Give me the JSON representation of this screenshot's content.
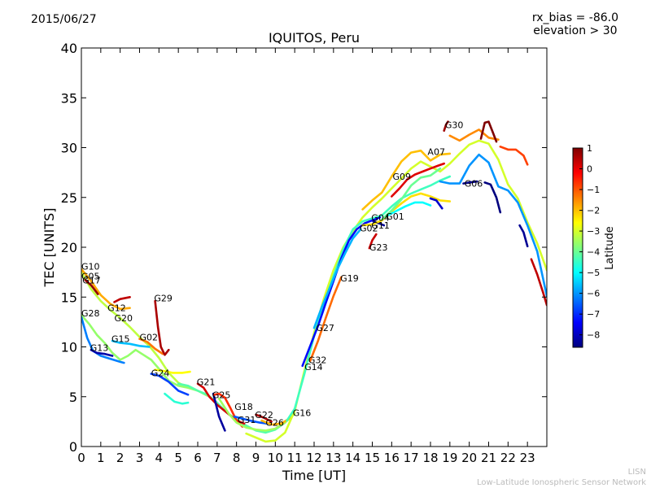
{
  "header": {
    "date": "2015/06/27",
    "bias_line1": "rx_bias = -86.0",
    "bias_line2": "elevation > 30"
  },
  "footer": {
    "org_short": "LISN",
    "org_long": "Low-Latitude Ionospheric Sensor Network"
  },
  "chart_data": {
    "type": "line",
    "title": "IQUITOS, Peru",
    "xlabel": "Time [UT]",
    "ylabel": "TEC [UNITS]",
    "xlim": [
      0,
      24
    ],
    "ylim": [
      0,
      40
    ],
    "xticks": [
      0,
      1,
      2,
      3,
      4,
      5,
      6,
      7,
      8,
      9,
      10,
      11,
      12,
      13,
      14,
      15,
      16,
      17,
      18,
      19,
      20,
      21,
      22,
      23
    ],
    "yticks": [
      0,
      5,
      10,
      15,
      20,
      25,
      30,
      35,
      40
    ],
    "grid": false,
    "colorbar": {
      "label": "Latitude",
      "range": [
        -8.6,
        1
      ],
      "ticks": [
        1,
        0,
        -1,
        -2,
        -3,
        -4,
        -5,
        -6,
        -7,
        -8
      ],
      "tick_labels": [
        "1",
        "0",
        "−1",
        "−2",
        "−3",
        "−4",
        "−5",
        "−6",
        "−7",
        "−8"
      ],
      "colormap": [
        "#00007f",
        "#0000ff",
        "#007fff",
        "#00ffff",
        "#7fff7f",
        "#ffff00",
        "#ff7f00",
        "#ff0000",
        "#7f0000"
      ]
    },
    "prn_labels": [
      {
        "text": "G10",
        "x": 0.0,
        "y": 18.1
      },
      {
        "text": "G05",
        "x": 0.0,
        "y": 17.1
      },
      {
        "text": "G17",
        "x": 0.05,
        "y": 16.7
      },
      {
        "text": "G28",
        "x": 0.0,
        "y": 13.4
      },
      {
        "text": "G12",
        "x": 1.35,
        "y": 13.9
      },
      {
        "text": "G20",
        "x": 1.7,
        "y": 12.9
      },
      {
        "text": "G29",
        "x": 3.75,
        "y": 14.9
      },
      {
        "text": "G15",
        "x": 1.55,
        "y": 10.8
      },
      {
        "text": "G02",
        "x": 3.0,
        "y": 11.0
      },
      {
        "text": "G13",
        "x": 0.45,
        "y": 9.9
      },
      {
        "text": "G24",
        "x": 3.6,
        "y": 7.4
      },
      {
        "text": "G21",
        "x": 5.95,
        "y": 6.5
      },
      {
        "text": "G25",
        "x": 6.75,
        "y": 5.2
      },
      {
        "text": "G18",
        "x": 7.9,
        "y": 4.0
      },
      {
        "text": "G31",
        "x": 8.05,
        "y": 2.7
      },
      {
        "text": "G22",
        "x": 8.95,
        "y": 3.2
      },
      {
        "text": "G26",
        "x": 9.5,
        "y": 2.4
      },
      {
        "text": "G16",
        "x": 10.9,
        "y": 3.4
      },
      {
        "text": "G14",
        "x": 11.5,
        "y": 8.0
      },
      {
        "text": "G32",
        "x": 11.7,
        "y": 8.7
      },
      {
        "text": "G27",
        "x": 12.1,
        "y": 11.9
      },
      {
        "text": "G19",
        "x": 13.35,
        "y": 16.9
      },
      {
        "text": "G23",
        "x": 14.85,
        "y": 20.0
      },
      {
        "text": "G02",
        "x": 14.35,
        "y": 21.9
      },
      {
        "text": "G11",
        "x": 14.95,
        "y": 22.2
      },
      {
        "text": "G04",
        "x": 14.95,
        "y": 23.0
      },
      {
        "text": "G01",
        "x": 15.7,
        "y": 23.1
      },
      {
        "text": "G09",
        "x": 16.05,
        "y": 27.1
      },
      {
        "text": "A07",
        "x": 17.85,
        "y": 29.6
      },
      {
        "text": "G30",
        "x": 18.75,
        "y": 32.3
      },
      {
        "text": "G06",
        "x": 19.75,
        "y": 26.4
      }
    ],
    "series": [
      {
        "lat": -3.2,
        "x": [
          0,
          0.5,
          1,
          1.5,
          2,
          2.5,
          3,
          3.5,
          4,
          4.5,
          5,
          5.5
        ],
        "y": [
          17.5,
          15.8,
          14.6,
          13.7,
          12.9,
          12.0,
          11.0,
          10.1,
          8.9,
          7.4,
          6.4,
          5.9
        ]
      },
      {
        "lat": -1.8,
        "x": [
          0,
          0.5,
          1,
          1.5,
          2,
          2.5
        ],
        "y": [
          17.8,
          16.6,
          15.2,
          14.3,
          13.8,
          13.9
        ]
      },
      {
        "lat": 0.8,
        "x": [
          0.2,
          0.5,
          0.85
        ],
        "y": [
          16.7,
          16.2,
          15.3
        ]
      },
      {
        "lat": 0.4,
        "x": [
          1.7,
          2.0,
          2.5
        ],
        "y": [
          14.5,
          14.8,
          15.0
        ]
      },
      {
        "lat": -3.6,
        "x": [
          0,
          0.4,
          0.8,
          1.2,
          1.6,
          2,
          2.4,
          2.8,
          3.2,
          3.6,
          4,
          4.5,
          5,
          5.5,
          6,
          6.5
        ],
        "y": [
          13.2,
          12.3,
          11.2,
          10.4,
          9.4,
          8.7,
          9.1,
          9.7,
          9.2,
          8.7,
          7.8,
          6.6,
          6.1,
          5.9,
          5.6,
          5.1
        ]
      },
      {
        "lat": -6.2,
        "x": [
          0,
          0.3,
          0.6,
          1.0,
          1.5,
          2.0,
          2.2
        ],
        "y": [
          13.0,
          10.9,
          9.6,
          9.1,
          8.8,
          8.5,
          8.4
        ]
      },
      {
        "lat": -8.2,
        "x": [
          0.5,
          0.8,
          1.2,
          1.6
        ],
        "y": [
          9.7,
          9.4,
          9.3,
          9.1
        ]
      },
      {
        "lat": -5.6,
        "x": [
          1.6,
          2.0,
          2.5,
          3.0,
          3.5
        ],
        "y": [
          10.6,
          10.4,
          10.3,
          10.1,
          10.0
        ]
      },
      {
        "lat": -1.3,
        "x": [
          3.0,
          3.4,
          3.8,
          4.2
        ],
        "y": [
          10.8,
          10.5,
          9.8,
          9.3
        ]
      },
      {
        "lat": 0.6,
        "x": [
          3.8,
          3.95,
          4.1,
          4.3,
          4.5
        ],
        "y": [
          14.6,
          12.0,
          10.0,
          9.2,
          9.7
        ]
      },
      {
        "lat": -6.8,
        "x": [
          3.6,
          4.0,
          4.5,
          5.0,
          5.5
        ],
        "y": [
          7.3,
          7.1,
          6.5,
          5.6,
          5.2
        ]
      },
      {
        "lat": -2.6,
        "x": [
          3.8,
          4.2,
          4.7,
          5.2,
          5.6
        ],
        "y": [
          7.7,
          7.6,
          7.4,
          7.4,
          7.5
        ]
      },
      {
        "lat": -4.6,
        "x": [
          4.3,
          4.8,
          5.2,
          5.5
        ],
        "y": [
          5.3,
          4.5,
          4.3,
          4.4
        ]
      },
      {
        "lat": -4.2,
        "x": [
          5.0,
          5.5,
          6.0,
          6.5,
          7.0,
          7.5,
          8.0,
          8.5,
          9.0,
          9.5,
          10.0,
          10.5
        ],
        "y": [
          6.3,
          6.1,
          5.6,
          5.2,
          4.4,
          3.4,
          2.7,
          2.1,
          1.6,
          1.4,
          1.7,
          2.4
        ]
      },
      {
        "lat": 0.2,
        "x": [
          6.0,
          6.3,
          6.6,
          7.0,
          7.5,
          8.0,
          8.4
        ],
        "y": [
          6.3,
          5.9,
          5.0,
          4.2,
          3.4,
          2.6,
          2.3
        ]
      },
      {
        "lat": -8.3,
        "x": [
          6.8,
          7.1,
          7.4
        ],
        "y": [
          5.3,
          3.0,
          1.6
        ]
      },
      {
        "lat": -0.6,
        "x": [
          6.85,
          7.1,
          7.4,
          7.7,
          8.0,
          8.3
        ],
        "y": [
          5.2,
          5.3,
          4.9,
          3.8,
          2.6,
          2.0
        ]
      },
      {
        "lat": -3.5,
        "x": [
          7.1,
          7.6,
          8.0,
          8.5,
          9.0,
          9.5,
          10.0,
          10.5,
          11.0
        ],
        "y": [
          4.8,
          3.3,
          2.4,
          1.9,
          1.7,
          1.6,
          1.8,
          2.4,
          3.3
        ]
      },
      {
        "lat": -6.6,
        "x": [
          7.9,
          8.3,
          8.7,
          9.2,
          9.6
        ],
        "y": [
          3.0,
          2.8,
          2.6,
          2.4,
          2.3
        ]
      },
      {
        "lat": 0.6,
        "x": [
          9.0,
          9.4,
          9.8
        ],
        "y": [
          3.2,
          2.9,
          2.5
        ]
      },
      {
        "lat": -1.9,
        "x": [
          9.3,
          9.8,
          10.3,
          10.8
        ],
        "y": [
          2.6,
          2.2,
          2.3,
          2.9
        ]
      },
      {
        "lat": -3.0,
        "x": [
          8.5,
          9.0,
          9.5,
          10.0,
          10.5,
          11.0,
          11.5,
          12.0,
          12.5,
          13.0,
          13.5,
          14.0,
          14.5,
          15.0,
          15.5,
          16.0,
          16.5,
          17.0,
          17.5,
          18.0,
          18.5,
          19.0,
          19.5,
          20.0,
          20.5,
          21.0,
          21.5,
          22.0,
          22.5,
          23.0,
          23.5,
          24.0
        ],
        "y": [
          1.3,
          0.9,
          0.5,
          0.6,
          1.4,
          3.6,
          7.6,
          11.4,
          14.8,
          17.7,
          20.0,
          21.6,
          23.0,
          24.0,
          24.9,
          25.9,
          26.9,
          27.9,
          28.6,
          28.1,
          27.6,
          28.4,
          29.4,
          30.3,
          30.7,
          30.4,
          28.8,
          26.3,
          24.9,
          22.5,
          20.4,
          17.7
        ]
      },
      {
        "lat": -4.4,
        "x": [
          10.6,
          11.0,
          11.5,
          12.0,
          12.5,
          13.0,
          13.5,
          14.0,
          14.5,
          15.0,
          15.5,
          16.0,
          16.5,
          17.0,
          17.5,
          18.0,
          18.5,
          19.0
        ],
        "y": [
          2.6,
          3.8,
          7.3,
          11.1,
          14.2,
          17.1,
          19.8,
          21.8,
          22.6,
          22.9,
          23.2,
          24.1,
          24.9,
          25.4,
          25.8,
          26.2,
          26.7,
          27.1
        ]
      },
      {
        "lat": -7.3,
        "x": [
          11.4,
          11.8,
          12.2,
          12.6,
          13.0,
          13.4,
          13.8,
          14.2,
          14.6,
          15.0,
          15.4
        ],
        "y": [
          8.1,
          10.1,
          12.1,
          14.4,
          16.6,
          18.9,
          20.7,
          21.8,
          22.4,
          22.7,
          23.0
        ]
      },
      {
        "lat": -1.2,
        "x": [
          11.8,
          12.2,
          12.6,
          13.0,
          13.4
        ],
        "y": [
          8.6,
          10.6,
          12.9,
          15.1,
          17.0
        ]
      },
      {
        "lat": -5.7,
        "x": [
          12.0,
          12.4,
          12.8,
          13.2,
          13.6,
          14.0,
          14.4
        ],
        "y": [
          11.9,
          14.0,
          15.9,
          17.8,
          19.4,
          20.9,
          21.8
        ]
      },
      {
        "lat": 0.3,
        "x": [
          14.85,
          15.0,
          15.2
        ],
        "y": [
          19.9,
          20.7,
          21.3
        ]
      },
      {
        "lat": -8.4,
        "x": [
          15.05,
          15.35,
          15.6
        ],
        "y": [
          22.6,
          22.4,
          22.2
        ]
      },
      {
        "lat": -2.3,
        "x": [
          14.5,
          15.0,
          15.5,
          16.0,
          16.5,
          17.0,
          17.5,
          18.0,
          18.5,
          19.0
        ],
        "y": [
          22.2,
          22.3,
          22.7,
          23.6,
          24.4,
          25.1,
          25.4,
          25.1,
          24.7,
          24.6
        ]
      },
      {
        "lat": -2.0,
        "x": [
          14.5,
          15.0,
          15.5,
          16.0,
          16.5,
          17.0,
          17.5,
          18.0,
          18.5,
          19.0
        ],
        "y": [
          23.8,
          24.7,
          25.5,
          27.1,
          28.6,
          29.5,
          29.7,
          28.7,
          29.3,
          29.4
        ]
      },
      {
        "lat": 0.1,
        "x": [
          16.0,
          16.4,
          16.8,
          17.2,
          17.6,
          18.0,
          18.4,
          18.7
        ],
        "y": [
          25.1,
          25.9,
          26.8,
          27.3,
          27.6,
          27.9,
          28.2,
          28.4
        ]
      },
      {
        "lat": -5.0,
        "x": [
          15.7,
          16.2,
          16.7,
          17.2,
          17.6,
          18.0
        ],
        "y": [
          23.1,
          23.6,
          24.1,
          24.5,
          24.5,
          24.2
        ]
      },
      {
        "lat": -7.9,
        "x": [
          18.0,
          18.3,
          18.6
        ],
        "y": [
          24.9,
          24.7,
          23.9
        ]
      },
      {
        "lat": 0.7,
        "x": [
          18.7,
          18.8,
          18.9
        ],
        "y": [
          31.7,
          32.3,
          32.6
        ]
      },
      {
        "lat": -1.5,
        "x": [
          19.0,
          19.5,
          20.0,
          20.5,
          21.0,
          21.5
        ],
        "y": [
          31.2,
          30.7,
          31.3,
          31.8,
          31.0,
          30.8
        ]
      },
      {
        "lat": 1.0,
        "x": [
          20.6,
          20.8,
          21.0,
          21.2,
          21.4
        ],
        "y": [
          30.9,
          32.5,
          32.6,
          31.6,
          30.6
        ]
      },
      {
        "lat": -6.0,
        "x": [
          18.5,
          19.0,
          19.5,
          20.0,
          20.5,
          21.0,
          21.5,
          22.0,
          22.5,
          23.0,
          23.5,
          24.0
        ],
        "y": [
          26.6,
          26.4,
          26.4,
          28.2,
          29.3,
          28.5,
          26.1,
          25.7,
          24.5,
          22.2,
          19.6,
          15.1
        ]
      },
      {
        "lat": -8.5,
        "x": [
          19.7,
          20.0,
          20.4
        ],
        "y": [
          26.4,
          26.5,
          26.6
        ]
      },
      {
        "lat": -8.6,
        "x": [
          20.8,
          21.1,
          21.4,
          21.6
        ],
        "y": [
          26.5,
          26.3,
          25.0,
          23.5
        ]
      },
      {
        "lat": -0.8,
        "x": [
          21.6,
          22.0,
          22.4,
          22.8,
          23.0
        ],
        "y": [
          30.1,
          29.8,
          29.8,
          29.2,
          28.3
        ]
      },
      {
        "lat": -8.4,
        "x": [
          22.6,
          22.8,
          23.0
        ],
        "y": [
          22.2,
          21.5,
          20.1
        ]
      },
      {
        "lat": 0.4,
        "x": [
          23.2,
          23.5,
          23.8,
          24.0
        ],
        "y": [
          18.8,
          17.3,
          15.5,
          14.2
        ]
      },
      {
        "lat": -4.0,
        "x": [
          15.5,
          16.0,
          16.5,
          17.0,
          17.5,
          18.0,
          18.5
        ],
        "y": [
          22.8,
          23.7,
          24.8,
          26.2,
          27.0,
          27.2,
          27.9
        ]
      }
    ]
  }
}
